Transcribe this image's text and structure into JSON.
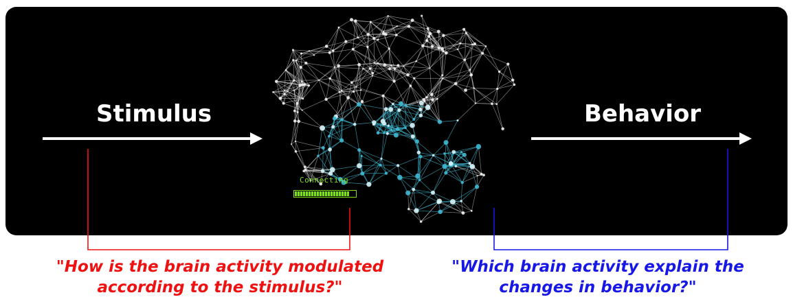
{
  "diagram": {
    "stimulus_label": "Stimulus",
    "behavior_label": "Behavior",
    "status_text": "Connecting",
    "progress": 0.9,
    "questions": {
      "left": {
        "line1": "\"How is the brain activity modulated",
        "line2": "according to the stimulus?\""
      },
      "right": {
        "line1": "\"Which brain activity explain the",
        "line2": "changes in behavior?\""
      }
    },
    "colors": {
      "panel": "#000000",
      "arrows": "#ffffff",
      "left_bracket": "#ee1111",
      "right_bracket": "#1717e6",
      "brain_outline": "#e6e6e6",
      "brain_network": "#3fb8d2",
      "status": "#7fe01a"
    },
    "icons": [
      "brain-network-icon"
    ]
  }
}
